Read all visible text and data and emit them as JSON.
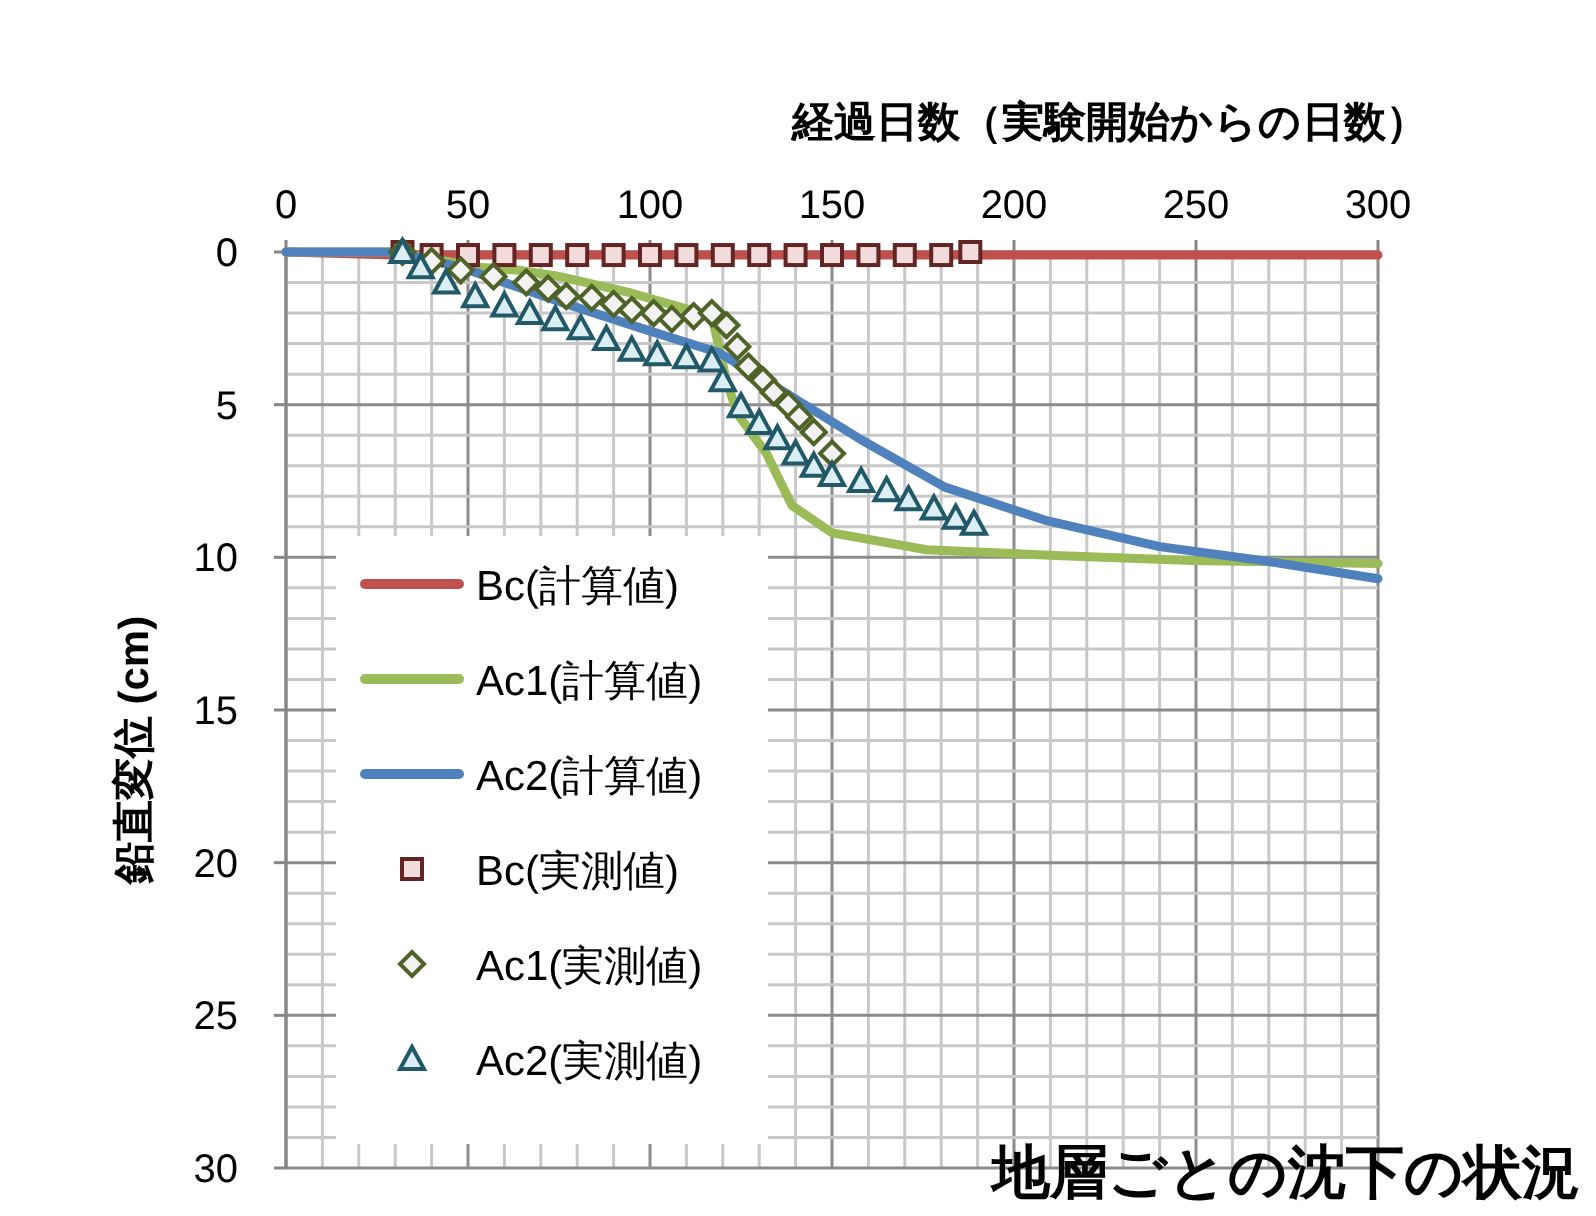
{
  "chart_data": {
    "type": "line",
    "xlabel": "経過日数（実験開始からの日数）",
    "ylabel": "鉛直変位 (cm)",
    "annotations": [
      "地層ごとの沈下の状況"
    ],
    "xlim": [
      0,
      300
    ],
    "xticks": [
      0,
      {
        "value": 10,
        "label": null
      },
      {
        "value": 20,
        "label": null
      },
      {
        "value": 30,
        "label": null
      },
      {
        "value": 40,
        "label": null
      },
      50,
      {
        "value": 60,
        "label": null
      },
      {
        "value": 70,
        "label": null
      },
      {
        "value": 80,
        "label": null
      },
      {
        "value": 90,
        "label": null
      },
      100,
      {
        "value": 110,
        "label": null
      },
      {
        "value": 120,
        "label": null
      },
      {
        "value": 130,
        "label": null
      },
      {
        "value": 140,
        "label": null
      },
      150,
      {
        "value": 160,
        "label": null
      },
      {
        "value": 170,
        "label": null
      },
      {
        "value": 180,
        "label": null
      },
      {
        "value": 190,
        "label": null
      },
      200,
      {
        "value": 210,
        "label": null
      },
      {
        "value": 220,
        "label": null
      },
      {
        "value": 230,
        "label": null
      },
      {
        "value": 240,
        "label": null
      },
      250,
      {
        "value": 260,
        "label": null
      },
      {
        "value": 270,
        "label": null
      },
      {
        "value": 280,
        "label": null
      },
      {
        "value": 290,
        "label": null
      },
      300
    ],
    "ylim": [
      30,
      0
    ],
    "yticks": [
      0,
      {
        "value": 1,
        "label": null
      },
      {
        "value": 2,
        "label": null
      },
      {
        "value": 3,
        "label": null
      },
      {
        "value": 4,
        "label": null
      },
      5,
      {
        "value": 6,
        "label": null
      },
      {
        "value": 7,
        "label": null
      },
      {
        "value": 8,
        "label": null
      },
      {
        "value": 9,
        "label": null
      },
      10,
      {
        "value": 11,
        "label": null
      },
      {
        "value": 12,
        "label": null
      },
      {
        "value": 13,
        "label": null
      },
      {
        "value": 14,
        "label": null
      },
      15,
      {
        "value": 16,
        "label": null
      },
      {
        "value": 17,
        "label": null
      },
      {
        "value": 18,
        "label": null
      },
      {
        "value": 19,
        "label": null
      },
      20,
      {
        "value": 21,
        "label": null
      },
      {
        "value": 22,
        "label": null
      },
      {
        "value": 23,
        "label": null
      },
      {
        "value": 24,
        "label": null
      },
      25,
      {
        "value": 26,
        "label": null
      },
      {
        "value": 27,
        "label": null
      },
      {
        "value": 28,
        "label": null
      },
      {
        "value": 29,
        "label": null
      },
      30
    ],
    "grid": true,
    "legend": "left",
    "series": [
      {
        "name": "Bc(計算値)",
        "type": "line",
        "color": "#c0504d",
        "x": [
          0,
          30,
          300
        ],
        "values": [
          0,
          0.1,
          0.1
        ]
      },
      {
        "name": "Ac1(計算値)",
        "type": "line",
        "color": "#9bbb59",
        "x": [
          0,
          30,
          53,
          64,
          75,
          95,
          117,
          121,
          124,
          132,
          139,
          150,
          176,
          213,
          249,
          300
        ],
        "values": [
          0,
          0,
          0.5,
          0.6,
          0.8,
          1.35,
          2.1,
          4.2,
          5.3,
          6.6,
          8.3,
          9.2,
          9.75,
          9.95,
          10.1,
          10.2
        ]
      },
      {
        "name": "Ac2(計算値)",
        "type": "line",
        "color": "#4f81bd",
        "x": [
          0,
          30,
          48,
          77,
          99,
          119,
          137,
          158,
          181,
          209,
          240,
          268,
          300
        ],
        "values": [
          0,
          0,
          0.5,
          1.7,
          2.55,
          3.3,
          4.6,
          6.15,
          7.7,
          8.8,
          9.65,
          10.1,
          10.7
        ]
      },
      {
        "name": "Bc(実測値)",
        "type": "scatter",
        "marker": "square",
        "color": "#632523",
        "x": [
          32,
          40,
          50,
          60,
          70,
          80,
          90,
          100,
          110,
          120,
          130,
          140,
          150,
          160,
          170,
          180,
          188
        ],
        "values": [
          0,
          0.1,
          0.1,
          0.1,
          0.1,
          0.1,
          0.1,
          0.1,
          0.1,
          0.1,
          0.1,
          0.1,
          0.1,
          0.1,
          0.1,
          0.1,
          0
        ]
      },
      {
        "name": "Ac1(実測値)",
        "type": "scatter",
        "marker": "diamond",
        "color": "#4f6228",
        "x": [
          32,
          40,
          48,
          57,
          66,
          72,
          77,
          84,
          90,
          95,
          101,
          106,
          112,
          117,
          121,
          124,
          127,
          131,
          134,
          138,
          141,
          145,
          150
        ],
        "values": [
          0,
          0.3,
          0.6,
          0.8,
          1.0,
          1.2,
          1.45,
          1.5,
          1.7,
          1.9,
          2.0,
          2.2,
          2.1,
          2.0,
          2.4,
          3.1,
          3.75,
          4.2,
          4.6,
          5.0,
          5.4,
          5.9,
          6.6
        ]
      },
      {
        "name": "Ac2(実測値)",
        "type": "scatter",
        "marker": "triangle",
        "color": "#215968",
        "x": [
          32,
          37,
          44,
          52,
          60,
          67,
          74,
          81,
          88,
          95,
          102,
          110,
          117,
          120,
          125,
          130,
          135,
          140,
          145,
          150,
          158,
          165,
          171,
          178,
          184,
          189
        ],
        "values": [
          0,
          0.5,
          1.0,
          1.45,
          1.75,
          2.0,
          2.2,
          2.5,
          2.85,
          3.2,
          3.35,
          3.45,
          3.55,
          4.2,
          5.05,
          5.6,
          6.1,
          6.6,
          7.0,
          7.3,
          7.5,
          7.8,
          8.1,
          8.4,
          8.7,
          8.9
        ]
      }
    ]
  }
}
